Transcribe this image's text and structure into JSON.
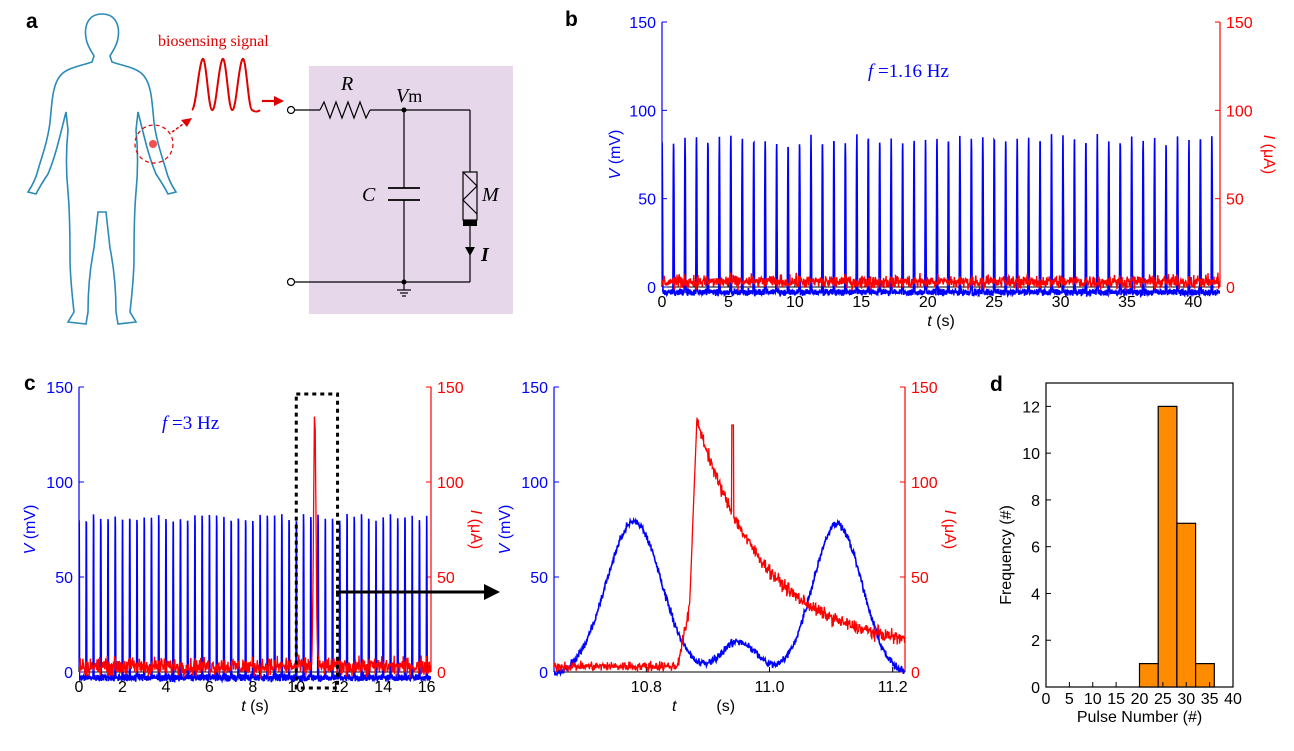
{
  "panels": {
    "a": "a",
    "b": "b",
    "c": "c",
    "d": "d"
  },
  "panel_a": {
    "signal_label": "biosensing signal",
    "R": "R",
    "Vm_V": "V",
    "Vm_sub": "m",
    "C": "C",
    "M": "M",
    "I": "I"
  },
  "colors": {
    "voltage": "#0000ff",
    "current": "#ff0000",
    "bar_fill": "#ff8c00",
    "circuit_bg": "#e6d8ea",
    "body_outline": "#2b8ab8"
  },
  "chart_data": [
    {
      "id": "b",
      "type": "line",
      "annotation": {
        "f": "f",
        "text": " =1.16 Hz"
      },
      "xlabel": {
        "var": "t",
        "unit": " (s)"
      },
      "ylabel_left": {
        "var": "V",
        "unit": " (mV)"
      },
      "ylabel_right": {
        "var": "I",
        "unit": " (μA)"
      },
      "xlim": [
        0,
        42
      ],
      "ylim": [
        0,
        150
      ],
      "xticks": [
        0,
        5,
        10,
        15,
        20,
        25,
        30,
        35,
        40
      ],
      "yticks": [
        0,
        50,
        100,
        150
      ],
      "series": [
        {
          "axis": "left",
          "color": "#0000ff",
          "peak": 84,
          "baseline": 0,
          "frequency_hz": 1.16
        },
        {
          "axis": "right",
          "color": "#ff0000",
          "mean": 3,
          "noise": 4
        }
      ]
    },
    {
      "id": "c_left",
      "type": "line",
      "annotation": {
        "f": "f",
        "text": " =3 Hz"
      },
      "xlabel": {
        "var": "t",
        "unit": " (s)"
      },
      "ylabel_left": {
        "var": "V",
        "unit": " (mV)"
      },
      "ylabel_right": {
        "var": "I",
        "unit": " (μA)"
      },
      "xlim": [
        0,
        16.2
      ],
      "ylim": [
        0,
        150
      ],
      "xticks": [
        0,
        2,
        4,
        6,
        8,
        10,
        12,
        14,
        16
      ],
      "yticks": [
        0,
        50,
        100,
        150
      ],
      "highlight_window": [
        10,
        11.9
      ],
      "series": [
        {
          "axis": "left",
          "color": "#0000ff",
          "peak": 84,
          "baseline": 0,
          "frequency_hz": 3
        },
        {
          "axis": "right",
          "color": "#ff0000",
          "mean": 3,
          "noise": 4,
          "spike_t": 10.85,
          "spike_peak": 133
        }
      ]
    },
    {
      "id": "c_right",
      "type": "line",
      "xlabel": {
        "var": "t",
        "unit": "(s)"
      },
      "ylabel_left": {
        "var": "V",
        "unit": " (mV)"
      },
      "ylabel_right": {
        "var": "I",
        "unit": " (μA)"
      },
      "xlim": [
        10.65,
        11.22
      ],
      "ylim": [
        0,
        150
      ],
      "xticks": [
        10.8,
        11.0,
        11.2
      ],
      "xtick_labels": [
        "10.8",
        "11.0",
        "11.2"
      ],
      "yticks": [
        0,
        50,
        100,
        150
      ],
      "series": [
        {
          "axis": "left",
          "color": "#0000ff",
          "peaks": [
            {
              "t": 10.78,
              "v": 81
            },
            {
              "t": 11.11,
              "v": 80
            }
          ],
          "shoulder": {
            "t": 10.95,
            "v": 18
          }
        },
        {
          "axis": "right",
          "color": "#ff0000",
          "rise_t": 10.87,
          "peak": 133,
          "spike": {
            "t": 10.94,
            "v": 130
          }
        }
      ]
    },
    {
      "id": "d",
      "type": "bar",
      "xlabel": "Pulse Number (#)",
      "ylabel": "Frequency (#)",
      "xlim": [
        0,
        40
      ],
      "ylim": [
        0,
        13
      ],
      "xticks": [
        0,
        5,
        10,
        15,
        20,
        25,
        30,
        35,
        40
      ],
      "yticks": [
        0,
        2,
        4,
        6,
        8,
        10,
        12
      ],
      "bins": [
        {
          "from": 20,
          "to": 24,
          "count": 1
        },
        {
          "from": 24,
          "to": 28,
          "count": 12
        },
        {
          "from": 28,
          "to": 32,
          "count": 7
        },
        {
          "from": 32,
          "to": 36,
          "count": 1
        }
      ]
    }
  ]
}
